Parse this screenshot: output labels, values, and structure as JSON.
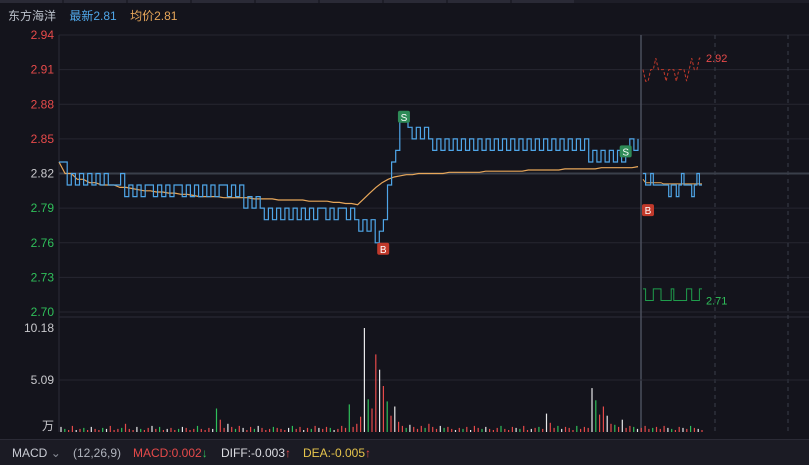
{
  "header": {
    "stock_name": "东方海洋",
    "latest_label": "最新2.81",
    "avg_label": "均价2.81"
  },
  "colors": {
    "price_line": "#4fa6e8",
    "avg_line": "#e8a75a",
    "up": "#e64a4a",
    "down": "#2fbf5a",
    "base": "#c8c8cc"
  },
  "chart_data": [
    {
      "type": "line",
      "panel": "price",
      "y_ticks": [
        "2.94",
        "2.91",
        "2.88",
        "2.85",
        "2.82",
        "2.79",
        "2.76",
        "2.73",
        "2.70"
      ],
      "ylim": [
        2.7,
        2.94
      ],
      "reference_price": 2.82,
      "series": [
        {
          "type": "price",
          "values": [
            2.83,
            2.83,
            2.81,
            2.82,
            2.81,
            2.82,
            2.81,
            2.82,
            2.81,
            2.82,
            2.81,
            2.82,
            2.81,
            2.81,
            2.81,
            2.82,
            2.8,
            2.81,
            2.8,
            2.81,
            2.8,
            2.81,
            2.81,
            2.8,
            2.81,
            2.8,
            2.81,
            2.8,
            2.81,
            2.81,
            2.8,
            2.81,
            2.8,
            2.81,
            2.8,
            2.81,
            2.8,
            2.81,
            2.8,
            2.81,
            2.81,
            2.8,
            2.81,
            2.8,
            2.81,
            2.79,
            2.8,
            2.79,
            2.8,
            2.79,
            2.78,
            2.79,
            2.78,
            2.79,
            2.78,
            2.79,
            2.78,
            2.79,
            2.78,
            2.79,
            2.78,
            2.79,
            2.78,
            2.79,
            2.79,
            2.78,
            2.79,
            2.78,
            2.79,
            2.79,
            2.78,
            2.79,
            2.78,
            2.77,
            2.78,
            2.77,
            2.78,
            2.76,
            2.77,
            2.78,
            2.81,
            2.83,
            2.84,
            2.87,
            2.87,
            2.86,
            2.85,
            2.86,
            2.85,
            2.86,
            2.85,
            2.84,
            2.85,
            2.84,
            2.85,
            2.84,
            2.85,
            2.84,
            2.85,
            2.84,
            2.85,
            2.84,
            2.85,
            2.84,
            2.85,
            2.84,
            2.85,
            2.84,
            2.85,
            2.84,
            2.85,
            2.84,
            2.85,
            2.84,
            2.85,
            2.84,
            2.85,
            2.84,
            2.85,
            2.84,
            2.85,
            2.84,
            2.85,
            2.84,
            2.85,
            2.84,
            2.85,
            2.84,
            2.85,
            2.83,
            2.84,
            2.83,
            2.84,
            2.83,
            2.84,
            2.83,
            2.84,
            2.83,
            2.84,
            2.85,
            2.84,
            2.85
          ]
        },
        {
          "type": "average",
          "values": [
            2.83,
            2.82,
            2.82,
            2.815,
            2.815,
            2.812,
            2.812,
            2.81,
            2.81,
            2.81,
            2.808,
            2.808,
            2.807,
            2.806,
            2.805,
            2.805,
            2.804,
            2.804,
            2.803,
            2.803,
            2.802,
            2.802,
            2.801,
            2.8,
            2.8,
            2.8,
            2.8,
            2.799,
            2.799,
            2.799,
            2.799,
            2.799,
            2.798,
            2.798,
            2.798,
            2.798,
            2.797,
            2.797,
            2.797,
            2.797,
            2.797,
            2.796,
            2.796,
            2.796,
            2.796,
            2.795,
            2.795,
            2.794,
            2.794,
            2.793,
            2.798,
            2.803,
            2.808,
            2.812,
            2.815,
            2.817,
            2.818,
            2.819,
            2.819,
            2.82,
            2.82,
            2.82,
            2.82,
            2.82,
            2.821,
            2.821,
            2.821,
            2.821,
            2.821,
            2.821,
            2.822,
            2.822,
            2.822,
            2.822,
            2.822,
            2.822,
            2.822,
            2.823,
            2.823,
            2.823,
            2.823,
            2.823,
            2.823,
            2.824,
            2.824,
            2.824,
            2.824,
            2.824,
            2.824,
            2.825,
            2.825,
            2.825,
            2.825,
            2.825,
            2.825,
            2.826
          ]
        }
      ],
      "trade_markers": [
        {
          "label": "S",
          "index": 84
        },
        {
          "label": "S",
          "index": 138
        }
      ],
      "buy_markers": [
        {
          "label": "B",
          "index": 77
        }
      ]
    },
    {
      "type": "line",
      "panel": "price_day2",
      "annotations": [
        "2.92",
        "2.71"
      ],
      "series": [
        {
          "type": "upper_band",
          "values": [
            2.91,
            2.9,
            2.9,
            2.91,
            2.91,
            2.92,
            2.91,
            2.91,
            2.91,
            2.9,
            2.91,
            2.91,
            2.91,
            2.9,
            2.91,
            2.91,
            2.91,
            2.9,
            2.91,
            2.92,
            2.91,
            2.91,
            2.92,
            2.92
          ]
        },
        {
          "type": "price",
          "values": [
            2.82,
            2.81,
            2.81,
            2.82,
            2.81,
            2.81,
            2.81,
            2.81,
            2.81,
            2.81,
            2.8,
            2.81,
            2.81,
            2.8,
            2.81,
            2.82,
            2.81,
            2.81,
            2.81,
            2.8,
            2.81,
            2.82,
            2.81,
            2.81
          ]
        },
        {
          "type": "average",
          "values": [
            2.815,
            2.812,
            2.812,
            2.812,
            2.812,
            2.812,
            2.812,
            2.812,
            2.811,
            2.811,
            2.811,
            2.811,
            2.811,
            2.811,
            2.811,
            2.811,
            2.811,
            2.811,
            2.811,
            2.811,
            2.811,
            2.811,
            2.811,
            2.811
          ]
        },
        {
          "type": "lower_band",
          "values": [
            2.72,
            2.71,
            2.71,
            2.71,
            2.72,
            2.72,
            2.72,
            2.71,
            2.71,
            2.71,
            2.71,
            2.72,
            2.71,
            2.71,
            2.71,
            2.71,
            2.71,
            2.72,
            2.72,
            2.71,
            2.71,
            2.71,
            2.72,
            2.72
          ]
        }
      ],
      "buy_markers": [
        {
          "label": "B",
          "index": 1
        }
      ]
    },
    {
      "type": "bar",
      "panel": "volume",
      "y_ticks": [
        "10.18",
        "5.09",
        "万"
      ],
      "ylim": [
        0,
        10.18
      ],
      "values": [
        0.5,
        0.3,
        0.2,
        0.6,
        0.2,
        0.3,
        0.4,
        0.2,
        0.5,
        0.3,
        0.2,
        0.4,
        0.3,
        0.6,
        0.2,
        0.3,
        0.4,
        0.8,
        0.3,
        0.2,
        0.5,
        0.3,
        0.2,
        0.4,
        0.6,
        0.3,
        0.5,
        0.2,
        0.3,
        0.4,
        0.2,
        0.3,
        0.5,
        0.4,
        0.2,
        0.3,
        0.6,
        0.3,
        0.2,
        0.4,
        0.3,
        2.3,
        1.2,
        0.4,
        0.8,
        0.5,
        0.3,
        0.6,
        0.4,
        0.2,
        0.5,
        0.3,
        0.6,
        0.4,
        0.2,
        0.3,
        0.5,
        0.4,
        0.3,
        0.2,
        0.4,
        0.6,
        0.3,
        0.5,
        0.2,
        0.4,
        0.3,
        0.6,
        0.4,
        0.3,
        0.5,
        0.4,
        0.2,
        0.3,
        0.6,
        0.4,
        2.7,
        0.5,
        0.8,
        1.5,
        10.18,
        3.2,
        2.3,
        7.6,
        6.1,
        4.5,
        3.0,
        1.6,
        2.5,
        1.0,
        0.6,
        0.4,
        0.7,
        0.5,
        0.3,
        0.6,
        0.4,
        0.8,
        0.5,
        0.3,
        0.6,
        0.4,
        0.5,
        0.3,
        0.2,
        0.4,
        0.3,
        0.5,
        0.2,
        0.6,
        0.4,
        0.3,
        0.5,
        0.3,
        0.2,
        0.4,
        0.6,
        0.3,
        0.2,
        0.5,
        0.4,
        0.3,
        0.6,
        0.2,
        0.3,
        0.4,
        0.5,
        0.3,
        1.8,
        0.9,
        0.4,
        0.6,
        0.3,
        0.5,
        0.4,
        0.2,
        0.6,
        0.3,
        0.5,
        0.4,
        4.3,
        3.1,
        1.7,
        2.5,
        1.6,
        0.8,
        0.7,
        0.5,
        1.2,
        0.4,
        0.6,
        0.5,
        0.3,
        0.4,
        0.6,
        0.3,
        0.4,
        0.5,
        0.3,
        0.6,
        0.4,
        0.3,
        0.2,
        0.5,
        0.4,
        0.3,
        0.6,
        0.4,
        0.3,
        0.2
      ],
      "colors": [
        "r",
        "g",
        "w"
      ]
    }
  ],
  "footer": {
    "indicator": "MACD",
    "params": "(12,26,9)",
    "macd_label": "MACD:0.002",
    "macd_arrow": "↓",
    "diff_label": "DIFF:-0.003",
    "diff_arrow": "↑",
    "dea_label": "DEA:-0.005",
    "dea_arrow": "↑"
  }
}
